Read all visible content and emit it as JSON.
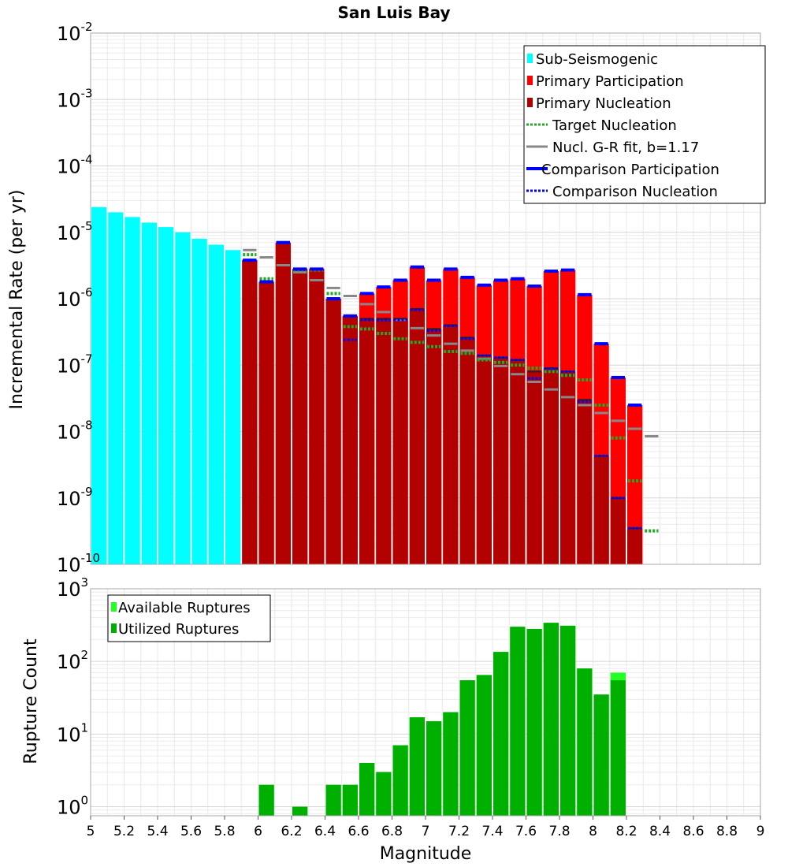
{
  "chart_data": [
    {
      "type": "bar",
      "title": "San Luis Bay",
      "ylabel": "Incremental Rate (per yr)",
      "xlabel": "",
      "y_scale": "log",
      "xlim": [
        5,
        9
      ],
      "ylim": [
        1e-10,
        0.01
      ],
      "grid": true,
      "legend_position": "top-right",
      "bin_width": 0.1,
      "legend": [
        {
          "label": "Sub-Seismogenic",
          "color": "#00ffff",
          "style": "bar"
        },
        {
          "label": "Primary Participation",
          "color": "#ff0000",
          "style": "bar"
        },
        {
          "label": "Primary Nucleation",
          "color": "#b30000",
          "style": "bar"
        },
        {
          "label": "Target Nucleation",
          "color": "#22aa22",
          "style": "dotted"
        },
        {
          "label": "Nucl. G-R fit, b=1.17",
          "color": "#888888",
          "style": "solid"
        },
        {
          "label": "Comparison Participation",
          "color": "#0000ff",
          "style": "solid-thick"
        },
        {
          "label": "Comparison Nucleation",
          "color": "#0000ff",
          "style": "dotted"
        }
      ],
      "series": [
        {
          "name": "Sub-Seismogenic",
          "x": [
            5.05,
            5.15,
            5.25,
            5.35,
            5.45,
            5.55,
            5.65,
            5.75,
            5.85
          ],
          "values": [
            2.4e-05,
            2e-05,
            1.7e-05,
            1.4e-05,
            1.2e-05,
            1e-05,
            8e-06,
            6.5e-06,
            5.4e-06
          ]
        },
        {
          "name": "Primary Participation",
          "x": [
            5.95,
            6.05,
            6.15,
            6.25,
            6.35,
            6.45,
            6.55,
            6.65,
            6.75,
            6.85,
            6.95,
            7.05,
            7.15,
            7.25,
            7.35,
            7.45,
            7.55,
            7.65,
            7.75,
            7.85,
            7.95,
            8.05,
            8.15,
            8.25
          ],
          "values": [
            3.8e-06,
            1.8e-06,
            7e-06,
            2.8e-06,
            2.8e-06,
            1e-06,
            5.5e-07,
            1.2e-06,
            1.5e-06,
            1.9e-06,
            3e-06,
            1.9e-06,
            2.8e-06,
            2.1e-06,
            1.6e-06,
            1.9e-06,
            2e-06,
            1.55e-06,
            2.6e-06,
            2.7e-06,
            1.15e-06,
            2.1e-07,
            6.5e-08,
            2.5e-08
          ]
        },
        {
          "name": "Primary Nucleation",
          "x": [
            5.95,
            6.05,
            6.15,
            6.25,
            6.35,
            6.45,
            6.55,
            6.65,
            6.75,
            6.85,
            6.95,
            7.05,
            7.15,
            7.25,
            7.35,
            7.45,
            7.55,
            7.65,
            7.75,
            7.85,
            7.95,
            8.05,
            8.15,
            8.25
          ],
          "values": [
            3.8e-06,
            1.8e-06,
            7e-06,
            2.8e-06,
            2.8e-06,
            1e-06,
            5.5e-07,
            5e-07,
            5e-07,
            5e-07,
            7e-07,
            3.5e-07,
            4e-07,
            2.6e-07,
            1.4e-07,
            1.3e-07,
            1.2e-07,
            8e-08,
            9e-08,
            8e-08,
            3e-08,
            4.3e-09,
            1e-09,
            3.5e-10
          ]
        },
        {
          "name": "Target Nucleation",
          "x": [
            5.95,
            6.05,
            6.15,
            6.25,
            6.35,
            6.45,
            6.55,
            6.65,
            6.75,
            6.85,
            6.95,
            7.05,
            7.15,
            7.25,
            7.35,
            7.45,
            7.55,
            7.65,
            7.75,
            7.85,
            7.95,
            8.05,
            8.15,
            8.25,
            8.35
          ],
          "values": [
            4.6e-06,
            2e-06,
            7e-06,
            2.7e-06,
            2.7e-06,
            1.2e-06,
            3.8e-07,
            3.5e-07,
            3e-07,
            2.5e-07,
            2.2e-07,
            1.9e-07,
            1.6e-07,
            1.5e-07,
            1.2e-07,
            1.1e-07,
            1e-07,
            9e-08,
            8e-08,
            7e-08,
            6e-08,
            2.5e-08,
            8e-09,
            1.8e-09,
            3.2e-10
          ]
        },
        {
          "name": "Nucl. G-R fit, b=1.17",
          "x": [
            5.95,
            6.05,
            6.15,
            6.25,
            6.35,
            6.45,
            6.55,
            6.65,
            6.75,
            6.85,
            6.95,
            7.05,
            7.15,
            7.25,
            7.35,
            7.45,
            7.55,
            7.65,
            7.75,
            7.85,
            7.95,
            8.05,
            8.15,
            8.25,
            8.35
          ],
          "values": [
            5.4e-06,
            4.2e-06,
            3.2e-06,
            2.5e-06,
            1.9e-06,
            1.45e-06,
            1.1e-06,
            8.3e-07,
            6.3e-07,
            4.8e-07,
            3.6e-07,
            2.8e-07,
            2.1e-07,
            1.65e-07,
            1.25e-07,
            9.7e-08,
            7.3e-08,
            5.6e-08,
            4.3e-08,
            3.3e-08,
            2.5e-08,
            1.9e-08,
            1.45e-08,
            1.1e-08,
            8.5e-09
          ]
        },
        {
          "name": "Comparison Participation",
          "x": [
            5.95,
            6.05,
            6.15,
            6.25,
            6.35,
            6.45,
            6.55,
            6.65,
            6.75,
            6.85,
            6.95,
            7.05,
            7.15,
            7.25,
            7.35,
            7.45,
            7.55,
            7.65,
            7.75,
            7.85,
            7.95,
            8.05,
            8.15,
            8.25
          ],
          "values": [
            3.8e-06,
            1.8e-06,
            7e-06,
            2.8e-06,
            2.8e-06,
            1e-06,
            5.5e-07,
            1.2e-06,
            1.5e-06,
            1.9e-06,
            3e-06,
            1.9e-06,
            2.8e-06,
            2.1e-06,
            1.6e-06,
            1.9e-06,
            2e-06,
            1.55e-06,
            2.6e-06,
            2.7e-06,
            1.15e-06,
            2.1e-07,
            6.5e-08,
            2.5e-08
          ]
        },
        {
          "name": "Comparison Nucleation",
          "x": [
            5.95,
            6.05,
            6.15,
            6.25,
            6.35,
            6.45,
            6.55,
            6.65,
            6.75,
            6.85,
            6.95,
            7.05,
            7.15,
            7.25,
            7.35,
            7.45,
            7.55,
            7.65,
            7.75,
            7.85,
            7.95,
            8.05,
            8.15,
            8.25
          ],
          "values": [
            3.8e-06,
            1.8e-06,
            7e-06,
            2.8e-06,
            2.8e-06,
            1e-06,
            2.4e-07,
            4.8e-07,
            4.7e-07,
            4.8e-07,
            6.8e-07,
            3.3e-07,
            3.9e-07,
            2.5e-07,
            1.4e-07,
            1.3e-07,
            1.2e-07,
            6.3e-08,
            8.8e-08,
            8e-08,
            2.8e-08,
            4.3e-09,
            1e-09,
            3.5e-10
          ]
        }
      ]
    },
    {
      "type": "bar",
      "title": "",
      "ylabel": "Rupture Count",
      "xlabel": "Magnitude",
      "y_scale": "log",
      "xlim": [
        5,
        9
      ],
      "ylim": [
        0.75,
        1000
      ],
      "grid": true,
      "legend_position": "top-left",
      "bin_width": 0.1,
      "x_ticks": [
        "5",
        "5.2",
        "5.4",
        "5.6",
        "5.8",
        "6",
        "6.2",
        "6.4",
        "6.6",
        "6.8",
        "7",
        "7.2",
        "7.4",
        "7.6",
        "7.8",
        "8",
        "8.2",
        "8.4",
        "8.6",
        "8.8",
        "9"
      ],
      "legend": [
        {
          "label": "Available Ruptures",
          "color": "#22ff22",
          "style": "bar"
        },
        {
          "label": "Utilized Ruptures",
          "color": "#00b000",
          "style": "bar"
        }
      ],
      "series": [
        {
          "name": "Available Ruptures",
          "x": [
            6.05,
            6.25,
            6.45,
            6.55,
            6.65,
            6.75,
            6.85,
            6.95,
            7.05,
            7.15,
            7.25,
            7.35,
            7.45,
            7.55,
            7.65,
            7.75,
            7.85,
            7.95,
            8.05,
            8.15
          ],
          "values": [
            2,
            1,
            2,
            2,
            4,
            3,
            7,
            17,
            15,
            20,
            55,
            65,
            135,
            300,
            280,
            340,
            310,
            80,
            35,
            70
          ]
        },
        {
          "name": "Utilized Ruptures",
          "x": [
            6.05,
            6.25,
            6.45,
            6.55,
            6.65,
            6.75,
            6.85,
            6.95,
            7.05,
            7.15,
            7.25,
            7.35,
            7.45,
            7.55,
            7.65,
            7.75,
            7.85,
            7.95,
            8.05,
            8.15
          ],
          "values": [
            2,
            1,
            2,
            2,
            4,
            3,
            7,
            17,
            15,
            20,
            55,
            65,
            135,
            300,
            280,
            340,
            310,
            80,
            35,
            55
          ]
        }
      ]
    }
  ]
}
